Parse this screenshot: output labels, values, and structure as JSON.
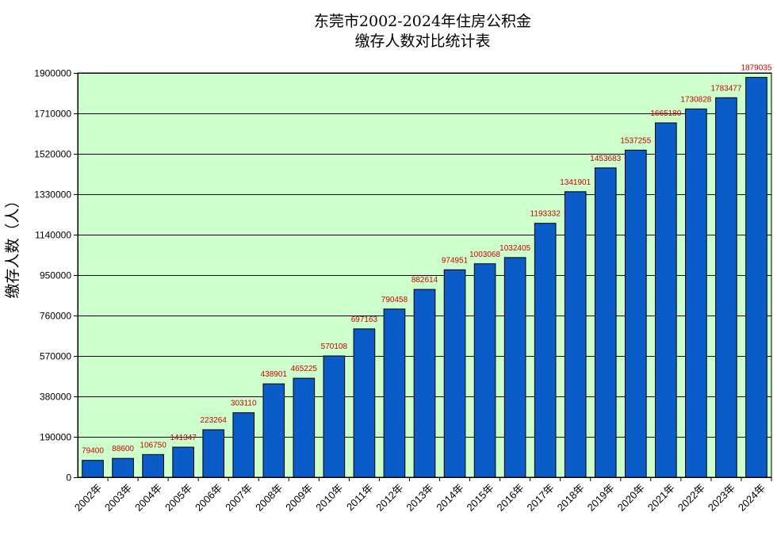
{
  "chart_data": {
    "type": "bar",
    "title_lines": [
      "东莞市2002-2024年住房公积金",
      "缴存人数对比统计表"
    ],
    "xlabel": "",
    "ylabel": "缴存人数（人）",
    "categories": [
      "2002年",
      "2003年",
      "2004年",
      "2005年",
      "2006年",
      "2007年",
      "2008年",
      "2009年",
      "2010年",
      "2011年",
      "2012年",
      "2013年",
      "2014年",
      "2015年",
      "2016年",
      "2017年",
      "2018年",
      "2019年",
      "2020年",
      "2021年",
      "2022年",
      "2023年",
      "2024年"
    ],
    "values": [
      79400,
      88600,
      106750,
      141347,
      223264,
      303110,
      438901,
      465225,
      570108,
      697163,
      790458,
      882614,
      974951,
      1003068,
      1032405,
      1193332,
      1341901,
      1453683,
      1537255,
      1665180,
      1730828,
      1783477,
      1879035
    ],
    "value_labels": [
      "79400",
      "88600",
      "106750",
      "141347",
      "223264",
      "303110",
      "438901",
      "465225",
      "570108",
      "697163",
      "790458",
      "882614",
      "974951",
      "1003068",
      "1032405",
      "1193332",
      "1341901",
      "1453683",
      "1537255",
      "1665180",
      "1730828",
      "1783477",
      "1879035"
    ],
    "ylim": [
      0,
      1900000
    ],
    "yticks": [
      0,
      190000,
      380000,
      570000,
      760000,
      950000,
      1140000,
      1330000,
      1520000,
      1710000,
      1900000
    ],
    "ytick_labels": [
      "0",
      "190000",
      "380000",
      "570000",
      "760000",
      "950000",
      "1140000",
      "1330000",
      "1520000",
      "1710000",
      "1900000"
    ],
    "grid": true,
    "legend": "none",
    "colors": {
      "bar": "#0a5cc8",
      "bar_border": "#000000",
      "plot_bg": "#ccffcc",
      "value_label": "#cc0000",
      "grid": "#000000"
    }
  }
}
